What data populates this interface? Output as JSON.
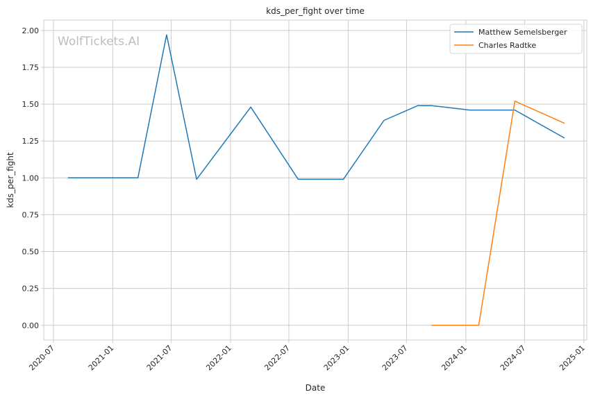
{
  "chart_data": {
    "type": "line",
    "title": "kds_per_fight over time",
    "xlabel": "Date",
    "ylabel": "kds_per_fight",
    "watermark": "WolfTickets.AI",
    "xlim": [
      "2020-06-01",
      "2025-01-10"
    ],
    "ylim": [
      -0.1,
      2.07
    ],
    "x_ticks": [
      "2020-07",
      "2021-01",
      "2021-07",
      "2022-01",
      "2022-07",
      "2023-01",
      "2023-07",
      "2024-01",
      "2024-07",
      "2025-01"
    ],
    "y_ticks": [
      "0.00",
      "0.25",
      "0.50",
      "0.75",
      "1.00",
      "1.25",
      "1.50",
      "1.75",
      "2.00"
    ],
    "grid": true,
    "legend_position": "top-right",
    "series": [
      {
        "name": "Matthew Semelsberger",
        "color": "#1f77b4",
        "points": [
          {
            "x": "2020-08-15",
            "y": 1.0
          },
          {
            "x": "2021-03-20",
            "y": 1.0
          },
          {
            "x": "2021-06-17",
            "y": 1.97
          },
          {
            "x": "2021-09-18",
            "y": 0.99
          },
          {
            "x": "2022-03-05",
            "y": 1.48
          },
          {
            "x": "2022-07-30",
            "y": 0.99
          },
          {
            "x": "2022-12-17",
            "y": 0.99
          },
          {
            "x": "2023-04-22",
            "y": 1.39
          },
          {
            "x": "2023-08-05",
            "y": 1.49
          },
          {
            "x": "2023-09-16",
            "y": 1.49
          },
          {
            "x": "2024-01-13",
            "y": 1.46
          },
          {
            "x": "2024-06-01",
            "y": 1.46
          },
          {
            "x": "2024-11-02",
            "y": 1.27
          }
        ]
      },
      {
        "name": "Charles Radtke",
        "color": "#ff7f0e",
        "points": [
          {
            "x": "2023-09-16",
            "y": 0.0
          },
          {
            "x": "2024-02-10",
            "y": 0.0
          },
          {
            "x": "2024-06-01",
            "y": 1.52
          },
          {
            "x": "2024-11-02",
            "y": 1.37
          }
        ]
      }
    ]
  }
}
